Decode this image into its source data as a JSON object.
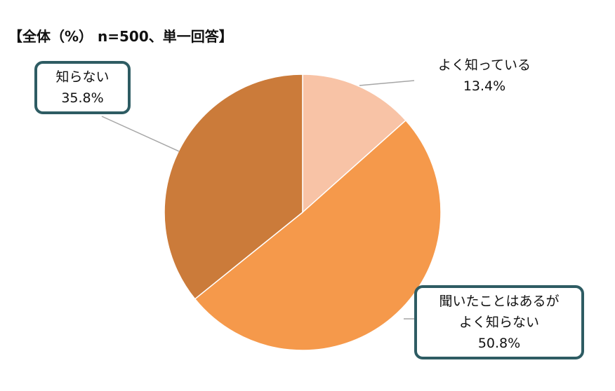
{
  "chart_data": {
    "type": "pie",
    "title": "【全体（%） n=500、単一回答】",
    "categories": [
      "よく知っている",
      "聞いたことはあるが\nよく知らない",
      "知らない"
    ],
    "values": [
      13.4,
      50.8,
      35.8
    ],
    "value_labels": [
      "13.4%",
      "50.8%",
      "35.8%"
    ],
    "colors": [
      "#f8c3a6",
      "#f5994b",
      "#cb7b3a"
    ]
  }
}
